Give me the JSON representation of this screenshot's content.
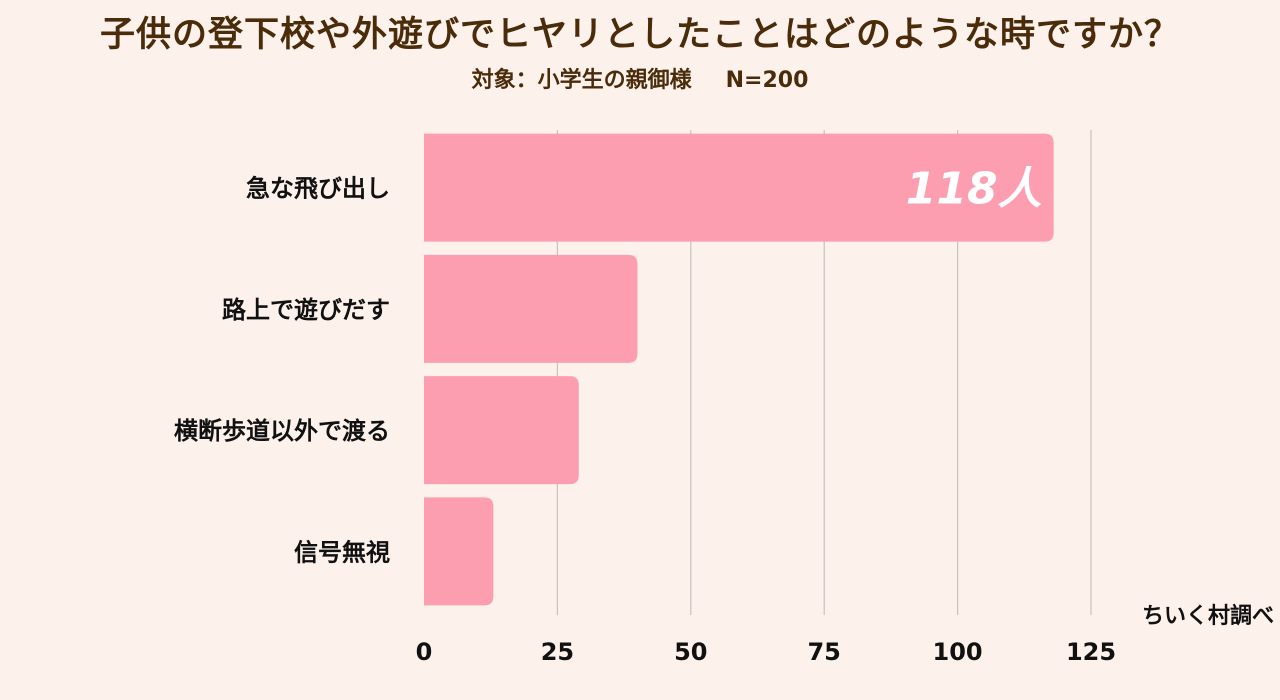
{
  "title": "子供の登下校や外遊びでヒヤリとしたことはどのような時ですか？",
  "subtitle": {
    "target": "対象：小学生の親御様",
    "n": "N=200"
  },
  "credit": "ちいく村調べ",
  "colors": {
    "bar": "#fd9db0",
    "grid": "#c9c2bf",
    "text": "#111111",
    "title": "#4a2c0a",
    "value_label": "#ffffff",
    "background": "#fdf1ec"
  },
  "chart_data": {
    "type": "bar",
    "orientation": "horizontal",
    "categories": [
      "急な飛び出し",
      "路上で遊びだす",
      "横断歩道以外で渡る",
      "信号無視"
    ],
    "values": [
      118,
      40,
      29,
      13
    ],
    "value_labels": [
      "118人",
      "",
      "",
      ""
    ],
    "xlim": [
      0,
      125
    ],
    "xticks": [
      0,
      25,
      50,
      75,
      100,
      125
    ],
    "grid": true,
    "legend": "none"
  }
}
